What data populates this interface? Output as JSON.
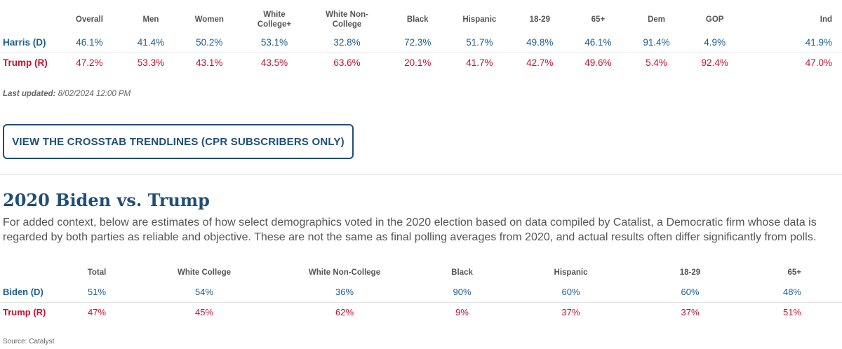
{
  "table1": {
    "headers": [
      "Overall",
      "Men",
      "Women",
      "White College+",
      "White Non-College",
      "Black",
      "Hispanic",
      "18-29",
      "65+",
      "Dem",
      "GOP",
      "Ind"
    ],
    "header_lines": [
      [
        "Overall"
      ],
      [
        "Men"
      ],
      [
        "Women"
      ],
      [
        "White",
        "College+"
      ],
      [
        "White Non-",
        "College"
      ],
      [
        "Black"
      ],
      [
        "Hispanic"
      ],
      [
        "18-29"
      ],
      [
        "65+"
      ],
      [
        "Dem"
      ],
      [
        "GOP"
      ],
      [
        "Ind"
      ]
    ],
    "rows": [
      {
        "name": "Harris (D)",
        "party": "dem",
        "values": [
          "46.1%",
          "41.4%",
          "50.2%",
          "53.1%",
          "32.8%",
          "72.3%",
          "51.7%",
          "49.8%",
          "46.1%",
          "91.4%",
          "4.9%",
          "41.9%"
        ]
      },
      {
        "name": "Trump (R)",
        "party": "rep",
        "values": [
          "47.2%",
          "53.3%",
          "43.1%",
          "43.5%",
          "63.6%",
          "20.1%",
          "41.7%",
          "42.7%",
          "49.6%",
          "5.4%",
          "92.4%",
          "47.0%"
        ]
      }
    ]
  },
  "updated": {
    "label": "Last updated:",
    "value": "8/02/2024 12:00 PM"
  },
  "cta": {
    "label": "VIEW THE CROSSTAB TRENDLINES (CPR SUBSCRIBERS ONLY)"
  },
  "section2": {
    "title": "2020 Biden vs. Trump",
    "intro": "For added context, below are estimates of how select demographics voted in the 2020 election based on data compiled by Catalist, a Democratic firm whose data is regarded by both parties as reliable and objective. These are not the same as final polling averages from 2020, and actual results often differ significantly from polls."
  },
  "table2": {
    "headers": [
      "Total",
      "White College",
      "White Non-College",
      "Black",
      "Hispanic",
      "18-29",
      "65+"
    ],
    "rows": [
      {
        "name": "Biden (D)",
        "party": "dem",
        "values": [
          "51%",
          "54%",
          "36%",
          "90%",
          "60%",
          "60%",
          "48%"
        ]
      },
      {
        "name": "Trump (R)",
        "party": "rep",
        "values": [
          "47%",
          "45%",
          "62%",
          "9%",
          "37%",
          "37%",
          "51%"
        ]
      }
    ]
  },
  "source": "Source: Catalyst",
  "colors": {
    "dem": "#1a5e96",
    "rep": "#c8102e",
    "accent": "#1f4e79"
  }
}
